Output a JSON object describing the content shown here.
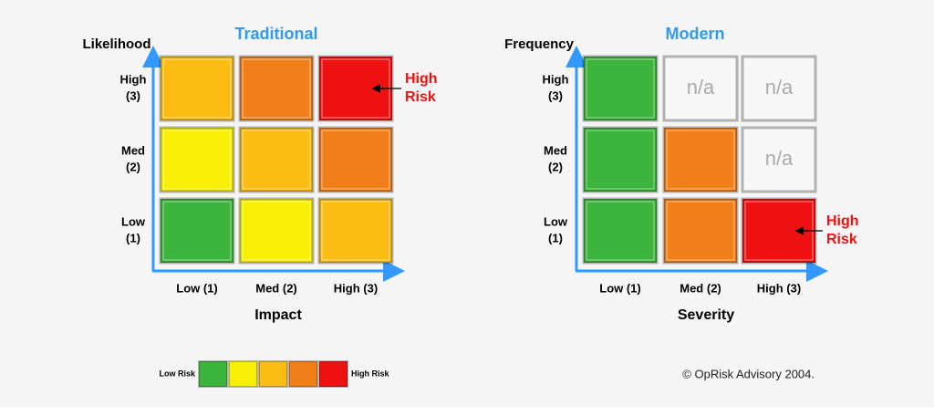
{
  "matrices": [
    {
      "title": "Traditional",
      "y_axis_label": "Likelihood",
      "x_axis_label": "Impact",
      "y_ticks": [
        {
          "level": "High",
          "score": "(3)"
        },
        {
          "level": "Med",
          "score": "(2)"
        },
        {
          "level": "Low",
          "score": "(1)"
        }
      ],
      "x_ticks": [
        "Low (1)",
        "Med (2)",
        "High (3)"
      ],
      "cells": [
        [
          {
            "color": "#fbbd14"
          },
          {
            "color": "#f07f1a"
          },
          {
            "color": "#ee1111"
          }
        ],
        [
          {
            "color": "#f9ef06"
          },
          {
            "color": "#fbbd14"
          },
          {
            "color": "#f07f1a"
          }
        ],
        [
          {
            "color": "#3cb33c"
          },
          {
            "color": "#f9ef06"
          },
          {
            "color": "#fbbd14"
          }
        ]
      ],
      "annotation": {
        "line1": "High",
        "line2": "Risk"
      }
    },
    {
      "title": "Modern",
      "y_axis_label": "Frequency",
      "x_axis_label": "Severity",
      "y_ticks": [
        {
          "level": "High",
          "score": "(3)"
        },
        {
          "level": "Med",
          "score": "(2)"
        },
        {
          "level": "Low",
          "score": "(1)"
        }
      ],
      "x_ticks": [
        "Low (1)",
        "Med (2)",
        "High (3)"
      ],
      "cells": [
        [
          {
            "color": "#3cb33c"
          },
          {
            "color": "#f7f7f7",
            "label": "n/a"
          },
          {
            "color": "#f7f7f7",
            "label": "n/a"
          }
        ],
        [
          {
            "color": "#3cb33c"
          },
          {
            "color": "#f07f1a"
          },
          {
            "color": "#f7f7f7",
            "label": "n/a"
          }
        ],
        [
          {
            "color": "#3cb33c"
          },
          {
            "color": "#f07f1a"
          },
          {
            "color": "#ee1111"
          }
        ]
      ],
      "annotation": {
        "line1": "High",
        "line2": "Risk"
      }
    }
  ],
  "legend": {
    "low_label": "Low Risk",
    "high_label": "High Risk",
    "colors": [
      "#3cb33c",
      "#f9ef06",
      "#fbbd14",
      "#f07f1a",
      "#ee1111"
    ]
  },
  "footer": {
    "copyright": "© OpRisk Advisory 2004."
  }
}
